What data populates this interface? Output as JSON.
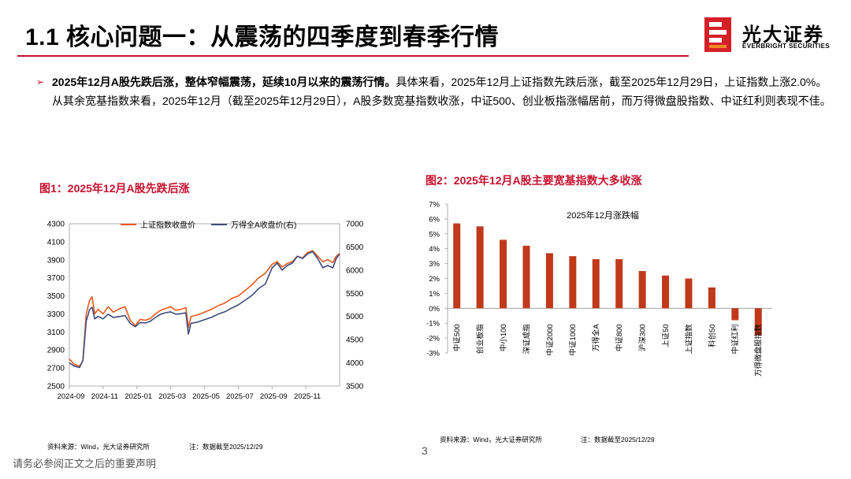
{
  "header": {
    "title": "1.1 核心问题一：从震荡的四季度到春季行情",
    "logo_cn": "光大证券",
    "logo_en": "EVERBRIGHT SECURITIES"
  },
  "bullet": {
    "bold_text": "2025年12月A股先跌后涨，整体窄幅震荡，延续10月以来的震荡行情。",
    "normal_text": "具体来看，2025年12月上证指数先跌后涨，截至2025年12月29日，上证指数上涨2.0%。从其余宽基指数来看，2025年12月（截至2025年12月29日），A股多数宽基指数收涨，中证500、创业板指涨幅居前，而万得微盘股指数、中证红利则表现不佳。"
  },
  "figure1": {
    "title": "图1：2025年12月A股先跌后涨",
    "source": "资料来源：Wind，光大证券研究所",
    "note": "注：数据截至2025/12/29"
  },
  "figure2": {
    "title": "图2：2025年12月A股主要宽基指数大多收涨",
    "source": "资料来源：Wind，光大证券研究所",
    "note": "注：数据截至2025/12/29"
  },
  "footer": {
    "page_number": "3",
    "disclaimer": "请务必参阅正文之后的重要声明"
  },
  "colors": {
    "accent": "#c8102e",
    "bar": "#c0391b",
    "line_sh": "#e8591e",
    "line_wind": "#404a7a"
  },
  "chart_data": [
    {
      "type": "line",
      "legend": [
        "上证指数收盘价",
        "万得全A收盘价(右)"
      ],
      "x_ticks": [
        "2024-09",
        "2024-11",
        "2025-01",
        "2025-03",
        "2025-05",
        "2025-07",
        "2025-09",
        "2025-11"
      ],
      "y_left_ticks": [
        "4300",
        "4100",
        "3900",
        "3700",
        "3500",
        "3300",
        "3100",
        "2900",
        "2700",
        "2500"
      ],
      "y_right_ticks": [
        "7000",
        "6500",
        "6000",
        "5500",
        "5000",
        "4500",
        "4000",
        "3500"
      ],
      "ylim_left": [
        2500,
        4300
      ],
      "ylim_right": [
        3500,
        7000
      ],
      "xlim": [
        0,
        16
      ],
      "series": [
        {
          "name": "上证指数收盘价",
          "axis": "left",
          "points": [
            [
              0,
              2800
            ],
            [
              0.3,
              2740
            ],
            [
              0.6,
              2720
            ],
            [
              0.8,
              2780
            ],
            [
              1.0,
              3300
            ],
            [
              1.2,
              3450
            ],
            [
              1.35,
              3490
            ],
            [
              1.5,
              3300
            ],
            [
              1.7,
              3350
            ],
            [
              2.0,
              3300
            ],
            [
              2.3,
              3380
            ],
            [
              2.6,
              3320
            ],
            [
              3.0,
              3360
            ],
            [
              3.3,
              3380
            ],
            [
              3.6,
              3230
            ],
            [
              3.9,
              3170
            ],
            [
              4.2,
              3240
            ],
            [
              4.5,
              3230
            ],
            [
              4.8,
              3250
            ],
            [
              5.1,
              3300
            ],
            [
              5.4,
              3340
            ],
            [
              5.7,
              3360
            ],
            [
              6.0,
              3380
            ],
            [
              6.3,
              3340
            ],
            [
              6.6,
              3350
            ],
            [
              6.9,
              3370
            ],
            [
              7.05,
              3150
            ],
            [
              7.2,
              3270
            ],
            [
              7.6,
              3290
            ],
            [
              8.0,
              3320
            ],
            [
              8.4,
              3350
            ],
            [
              8.8,
              3390
            ],
            [
              9.2,
              3420
            ],
            [
              9.6,
              3470
            ],
            [
              10.0,
              3500
            ],
            [
              10.4,
              3560
            ],
            [
              10.8,
              3620
            ],
            [
              11.2,
              3700
            ],
            [
              11.6,
              3750
            ],
            [
              12.0,
              3850
            ],
            [
              12.3,
              3880
            ],
            [
              12.6,
              3820
            ],
            [
              12.9,
              3860
            ],
            [
              13.2,
              3880
            ],
            [
              13.5,
              3940
            ],
            [
              13.8,
              3920
            ],
            [
              14.1,
              3980
            ],
            [
              14.4,
              4000
            ],
            [
              14.7,
              3940
            ],
            [
              15.0,
              3880
            ],
            [
              15.3,
              3900
            ],
            [
              15.6,
              3870
            ],
            [
              15.8,
              3940
            ],
            [
              16,
              3970
            ]
          ]
        },
        {
          "name": "万得全A收盘价(右)",
          "axis": "right",
          "points": [
            [
              0,
              4000
            ],
            [
              0.3,
              3930
            ],
            [
              0.6,
              3900
            ],
            [
              0.8,
              4050
            ],
            [
              1.0,
              4900
            ],
            [
              1.2,
              5150
            ],
            [
              1.35,
              5200
            ],
            [
              1.5,
              4950
            ],
            [
              1.7,
              5000
            ],
            [
              2.0,
              4950
            ],
            [
              2.3,
              5050
            ],
            [
              2.6,
              4980
            ],
            [
              3.0,
              5000
            ],
            [
              3.3,
              5020
            ],
            [
              3.6,
              4850
            ],
            [
              3.9,
              4780
            ],
            [
              4.2,
              4870
            ],
            [
              4.5,
              4860
            ],
            [
              4.8,
              4900
            ],
            [
              5.1,
              4980
            ],
            [
              5.4,
              5050
            ],
            [
              5.7,
              5080
            ],
            [
              6.0,
              5100
            ],
            [
              6.3,
              5050
            ],
            [
              6.6,
              5060
            ],
            [
              6.9,
              5080
            ],
            [
              7.05,
              4620
            ],
            [
              7.2,
              4850
            ],
            [
              7.6,
              4880
            ],
            [
              8.0,
              4930
            ],
            [
              8.4,
              4980
            ],
            [
              8.8,
              5050
            ],
            [
              9.2,
              5100
            ],
            [
              9.6,
              5180
            ],
            [
              10.0,
              5250
            ],
            [
              10.4,
              5350
            ],
            [
              10.8,
              5450
            ],
            [
              11.2,
              5600
            ],
            [
              11.6,
              5700
            ],
            [
              12.0,
              6050
            ],
            [
              12.3,
              6150
            ],
            [
              12.6,
              6000
            ],
            [
              12.9,
              6100
            ],
            [
              13.2,
              6150
            ],
            [
              13.5,
              6300
            ],
            [
              13.8,
              6250
            ],
            [
              14.1,
              6350
            ],
            [
              14.4,
              6400
            ],
            [
              14.7,
              6250
            ],
            [
              15.0,
              6050
            ],
            [
              15.3,
              6100
            ],
            [
              15.6,
              6050
            ],
            [
              15.8,
              6250
            ],
            [
              16,
              6350
            ]
          ]
        }
      ]
    },
    {
      "type": "bar",
      "title": "2025年12月涨跌幅",
      "categories": [
        "中证500",
        "创业板指",
        "中小100",
        "深证成指",
        "中证2000",
        "中证1000",
        "万得全A",
        "中证800",
        "沪深300",
        "上证50",
        "上证指数",
        "科创50",
        "中证红利",
        "万得微盘股指数"
      ],
      "values": [
        5.7,
        5.5,
        4.6,
        4.2,
        3.7,
        3.5,
        3.3,
        3.3,
        2.5,
        2.2,
        2.0,
        1.4,
        -0.8,
        -1.8
      ],
      "y_ticks": [
        "7%",
        "6%",
        "5%",
        "4%",
        "3%",
        "2%",
        "1%",
        "0%",
        "-1%",
        "-2%",
        "-3%"
      ],
      "ylim": [
        -3,
        7
      ]
    }
  ]
}
